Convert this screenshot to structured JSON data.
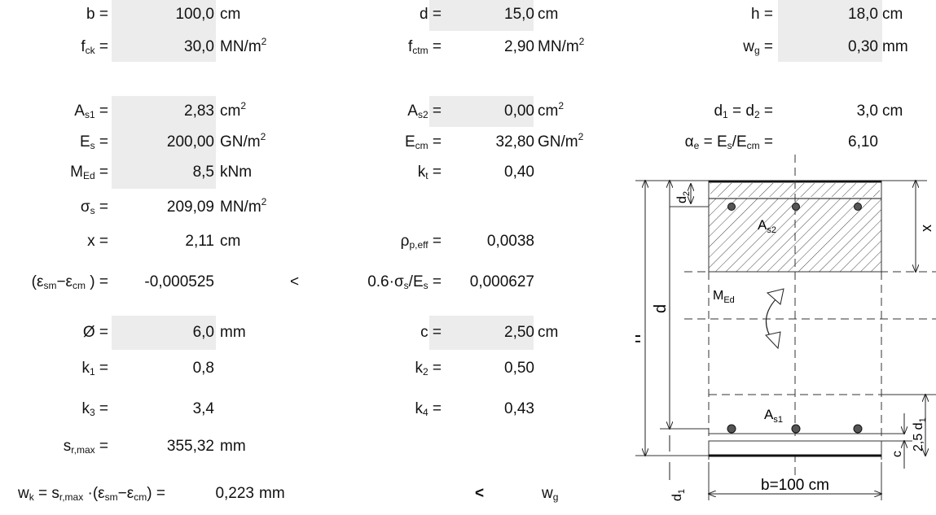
{
  "col1": {
    "b": {
      "label": "b =",
      "value": "100,0",
      "unit": "cm"
    },
    "fck": {
      "label": "f",
      "sub": "ck",
      "eq": " =",
      "value": "30,0",
      "unit": "MN/m",
      "sup": "2"
    },
    "as1": {
      "label": "A",
      "sub": "s1",
      "eq": " =",
      "value": "2,83",
      "unit": "cm",
      "sup": "2"
    },
    "es": {
      "label": "E",
      "sub": "s",
      "eq": " =",
      "value": "200,00",
      "unit": "GN/m",
      "sup": "2"
    },
    "med": {
      "label": "M",
      "sub": "Ed",
      "eq": " =",
      "value": "8,5",
      "unit": "kNm"
    },
    "sigma": {
      "label": "σ",
      "sub": "s",
      "eq": " =",
      "value": "209,09",
      "unit": "MN/m",
      "sup": "2"
    },
    "x": {
      "label": "x =",
      "value": "2,11",
      "unit": "cm"
    },
    "eps": {
      "pre": "(ε",
      "sub1": "sm",
      "mid": "−ε",
      "sub2": "cm",
      "post": " ) =",
      "value": "-0,000525",
      "cmp": "<"
    },
    "dia": {
      "label": "Ø =",
      "value": "6,0",
      "unit": "mm"
    },
    "k1": {
      "label": "k",
      "sub": "1",
      "eq": " =",
      "value": "0,8"
    },
    "k3": {
      "label": "k",
      "sub": "3",
      "eq": " =",
      "value": "3,4"
    },
    "srmax": {
      "label": "s",
      "sub": "r,max",
      "eq": " =",
      "value": "355,32",
      "unit": "mm"
    }
  },
  "col2": {
    "d": {
      "label": "d =",
      "value": "15,0",
      "unit": "cm"
    },
    "fctm": {
      "label": "f",
      "sub": "ctm",
      "eq": " =",
      "value": "2,90",
      "unit": "MN/m",
      "sup": "2"
    },
    "as2": {
      "label": "A",
      "sub": "s2",
      "eq": " =",
      "value": "0,00",
      "unit": "cm",
      "sup": "2"
    },
    "ecm": {
      "label": "E",
      "sub": "cm",
      "eq": " =",
      "value": "32,80",
      "unit": "GN/m",
      "sup": "2"
    },
    "kt": {
      "label": "k",
      "sub": "t",
      "eq": " =",
      "value": "0,40"
    },
    "rho": {
      "label": "ρ",
      "sub": "p,eff",
      "eq": " =",
      "value": "0,0038"
    },
    "ratio": {
      "pre": "0.6·σ",
      "sub1": "s",
      "mid": "/E",
      "sub2": "s",
      "post": " =",
      "value": "0,000627"
    },
    "c": {
      "label": "c =",
      "value": "2,50",
      "unit": "cm"
    },
    "k2": {
      "label": "k",
      "sub": "2",
      "eq": " =",
      "value": "0,50"
    },
    "k4": {
      "label": "k",
      "sub": "4",
      "eq": " =",
      "value": "0,43"
    }
  },
  "col3": {
    "h": {
      "label": "h =",
      "value": "18,0",
      "unit": "cm"
    },
    "wg": {
      "label": "w",
      "sub": "g",
      "eq": " =",
      "value": "0,30",
      "unit": "mm"
    },
    "d12": {
      "l1": "d",
      "s1": "1",
      "m": " = d",
      "s2": "2",
      "eq": " =",
      "value": "3,0",
      "unit": "cm"
    },
    "alpha": {
      "l1": "α",
      "s1": "e",
      "m": " = E",
      "s2": "s",
      "m2": "/E",
      "s3": "cm",
      "eq": " =",
      "value": "6,10"
    }
  },
  "result": {
    "l1": "w",
    "s1": "k",
    "m1": " = s",
    "s2": "r,max",
    "m2": " ·(ε",
    "s3": "sm",
    "m3": "−ε",
    "s4": "cm",
    "m4": ") =",
    "value": "0,223",
    "unit": "mm",
    "cmp": "<",
    "rhs": "w",
    "rhs_sub": "g"
  },
  "diagram": {
    "label_as2": "A",
    "label_as2_sub": "s2",
    "label_as1": "A",
    "label_as1_sub": "s1",
    "label_med": "M",
    "label_med_sub": "Ed",
    "label_x": "x",
    "label_d": "d",
    "label_h": "h",
    "label_d2": "d",
    "label_d2_sub": "2",
    "label_d1": "d",
    "label_d1_sub": "1",
    "label_c": "c",
    "label_25d1": "2,5 d",
    "label_25d1_sub": "1",
    "label_b": "b=100 cm"
  }
}
